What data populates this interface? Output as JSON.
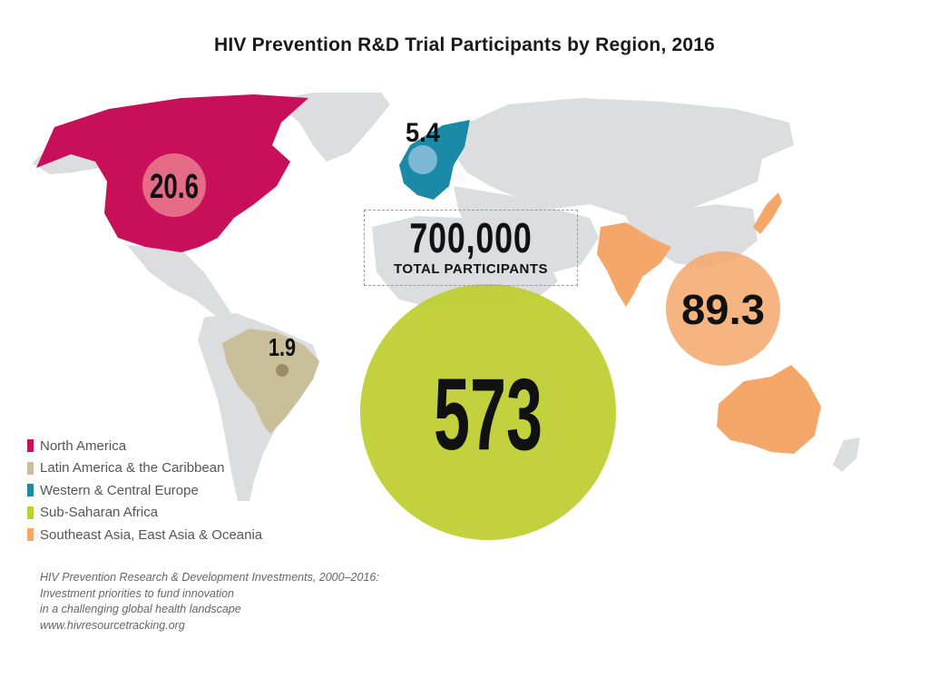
{
  "title": "HIV Prevention R&D Trial Participants by Region, 2016",
  "total": {
    "value": "700,000",
    "label": "TOTAL PARTICIPANTS"
  },
  "colors": {
    "north_america": "#c8105a",
    "latin_america": "#c9bf9b",
    "europe": "#1a8aa7",
    "africa": "#bfcd2e",
    "asia": "#f5a76a",
    "land": "#dcdddf"
  },
  "bubbles": {
    "north_america": "20.6",
    "latin_america": "1.9",
    "europe": "5.4",
    "africa": "573",
    "asia": "89.3"
  },
  "legend": [
    {
      "label": "North America",
      "color": "#c8105a"
    },
    {
      "label": "Latin America & the Caribbean",
      "color": "#c9bf9b"
    },
    {
      "label": "Western & Central Europe",
      "color": "#1a8aa7"
    },
    {
      "label": "Sub-Saharan Africa",
      "color": "#bfcd2e"
    },
    {
      "label": "Southeast Asia, East Asia & Oceania",
      "color": "#f5a76a"
    }
  ],
  "citation": [
    "HIV Prevention Research & Development Investments, 2000–2016:",
    "Investment priorities to fund innovation",
    "in a challenging global health landscape",
    "www.hivresourcetracking.org"
  ]
}
